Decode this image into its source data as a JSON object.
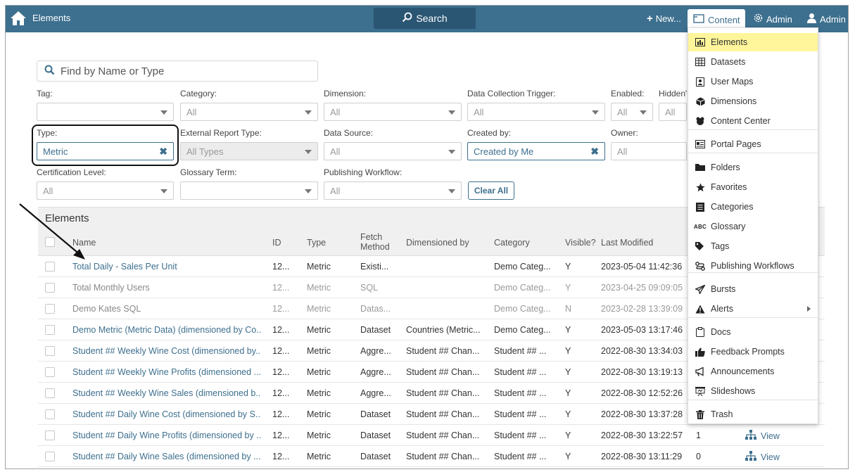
{
  "topbar": {
    "title": "Elements",
    "search_label": "Search",
    "new_label": "New...",
    "content_label": "Content",
    "admin1_label": "Admin",
    "admin2_label": "Admin",
    "color": "#3d6f8e"
  },
  "search": {
    "placeholder": "Find by Name or Type"
  },
  "filters": {
    "tag": {
      "label": "Tag:",
      "value": ""
    },
    "category": {
      "label": "Category:",
      "value": "All"
    },
    "dimension": {
      "label": "Dimension:",
      "value": "All"
    },
    "trigger": {
      "label": "Data Collection Trigger:",
      "value": "All"
    },
    "enabled": {
      "label": "Enabled:",
      "value": "All"
    },
    "hidden": {
      "label": "Hidden'",
      "value": "All"
    },
    "type": {
      "label": "Type:",
      "value": "Metric"
    },
    "ext_type": {
      "label": "External Report Type:",
      "value": "All Types"
    },
    "source": {
      "label": "Data Source:",
      "value": "All"
    },
    "created": {
      "label": "Created by:",
      "value": "Created by Me"
    },
    "owner": {
      "label": "Owner:",
      "value": "All"
    },
    "cert": {
      "label": "Certification Level:",
      "value": "All"
    },
    "glossary": {
      "label": "Glossary Term:",
      "value": ""
    },
    "workflow": {
      "label": "Publishing Workflow:",
      "value": "All"
    },
    "clear_all": "Clear All"
  },
  "table": {
    "title": "Elements",
    "headers": {
      "name": "Name",
      "id": "ID",
      "type": "Type",
      "fetch1": "Fetch",
      "fetch2": "Method",
      "dimby": "Dimensioned by",
      "category": "Category",
      "visible": "Visible?",
      "modified": "Last Modified"
    },
    "rows": [
      {
        "name": "Total Daily - Sales Per Unit",
        "id": "12...",
        "type": "Metric",
        "fetch": "Existi...",
        "dimby": "",
        "category": "Demo Categ...",
        "visible": "Y",
        "modified": "2023-05-04 11:42:36",
        "dim": false,
        "extra": "",
        "view": ""
      },
      {
        "name": "Total Monthly Users",
        "id": "12...",
        "type": "Metric",
        "fetch": "SQL",
        "dimby": "",
        "category": "Demo Categ...",
        "visible": "Y",
        "modified": "2023-04-25 09:09:05",
        "dim": true,
        "extra": "",
        "view": ""
      },
      {
        "name": "Demo Kates SQL",
        "id": "12...",
        "type": "Metric",
        "fetch": "Datas...",
        "dimby": "",
        "category": "Demo Categ...",
        "visible": "N",
        "modified": "2023-02-28 13:39:09",
        "dim": true,
        "extra": "",
        "view": ""
      },
      {
        "name": "Demo Metric (Metric Data) (dimensioned by Co...",
        "id": "12...",
        "type": "Metric",
        "fetch": "Dataset",
        "dimby": "Countries (Metric...",
        "category": "Demo Categ...",
        "visible": "Y",
        "modified": "2023-05-03 13:17:46",
        "dim": false,
        "extra": "",
        "view": ""
      },
      {
        "name": "Student ## Weekly Wine Cost (dimensioned by...",
        "id": "12...",
        "type": "Metric",
        "fetch": "Aggre...",
        "dimby": "Student ## Chan...",
        "category": "Student ## ...",
        "visible": "Y",
        "modified": "2022-08-30 13:34:03",
        "dim": false,
        "extra": "",
        "view": ""
      },
      {
        "name": "Student ## Weekly Wine Profits (dimensioned ...",
        "id": "12...",
        "type": "Metric",
        "fetch": "Aggre...",
        "dimby": "Student ## Chan...",
        "category": "Student ## ...",
        "visible": "Y",
        "modified": "2022-08-30 13:19:13",
        "dim": false,
        "extra": "",
        "view": ""
      },
      {
        "name": "Student ## Weekly Wine Sales (dimensioned b...",
        "id": "12...",
        "type": "Metric",
        "fetch": "Aggre...",
        "dimby": "Student ## Chan...",
        "category": "Student ## ...",
        "visible": "Y",
        "modified": "2022-08-30 12:52:26",
        "dim": false,
        "extra": "",
        "view": ""
      },
      {
        "name": "Student ## Daily Wine Cost (dimensioned by S...",
        "id": "12...",
        "type": "Metric",
        "fetch": "Dataset",
        "dimby": "Student ## Chan...",
        "category": "Student ## ...",
        "visible": "Y",
        "modified": "2022-08-30 13:37:28",
        "dim": false,
        "extra": "",
        "view": ""
      },
      {
        "name": "Student ## Daily Wine Profits (dimensioned by ...",
        "id": "12...",
        "type": "Metric",
        "fetch": "Dataset",
        "dimby": "Student ## Chan...",
        "category": "Student ## ...",
        "visible": "Y",
        "modified": "2022-08-30 13:22:57",
        "dim": false,
        "extra": "1",
        "view": "View"
      },
      {
        "name": "Student ## Daily Wine Sales (dimensioned by ...",
        "id": "12...",
        "type": "Metric",
        "fetch": "Dataset",
        "dimby": "Student ## Chan...",
        "category": "Student ## ...",
        "visible": "Y",
        "modified": "2022-08-30 13:11:29",
        "dim": false,
        "extra": "0",
        "view": "View"
      }
    ]
  },
  "menu": {
    "items": [
      {
        "label": "Elements",
        "icon": "bar-chart-icon",
        "selected": true
      },
      {
        "label": "Datasets",
        "icon": "table-icon"
      },
      {
        "label": "User Maps",
        "icon": "user-map-icon"
      },
      {
        "label": "Dimensions",
        "icon": "cube-icon"
      },
      {
        "label": "Content Center",
        "icon": "content-center-icon"
      },
      {
        "label": "Portal Pages",
        "icon": "portal-icon"
      },
      {
        "label": "Folders",
        "icon": "folder-icon"
      },
      {
        "label": "Favorites",
        "icon": "star-icon"
      },
      {
        "label": "Categories",
        "icon": "categories-icon"
      },
      {
        "label": "Glossary",
        "icon": "abc-icon",
        "icon_text": "ABC"
      },
      {
        "label": "Tags",
        "icon": "tag-icon"
      },
      {
        "label": "Publishing Workflows",
        "icon": "workflow-icon"
      },
      {
        "label": "Bursts",
        "icon": "send-icon"
      },
      {
        "label": "Alerts",
        "icon": "alert-icon"
      },
      {
        "label": "Docs",
        "icon": "docs-icon"
      },
      {
        "label": "Feedback Prompts",
        "icon": "thumbs-up-icon"
      },
      {
        "label": "Announcements",
        "icon": "bullhorn-icon"
      },
      {
        "label": "Slideshows",
        "icon": "slideshow-icon"
      },
      {
        "label": "Trash",
        "icon": "trash-icon"
      }
    ],
    "highlight_color": "#fff59a"
  }
}
